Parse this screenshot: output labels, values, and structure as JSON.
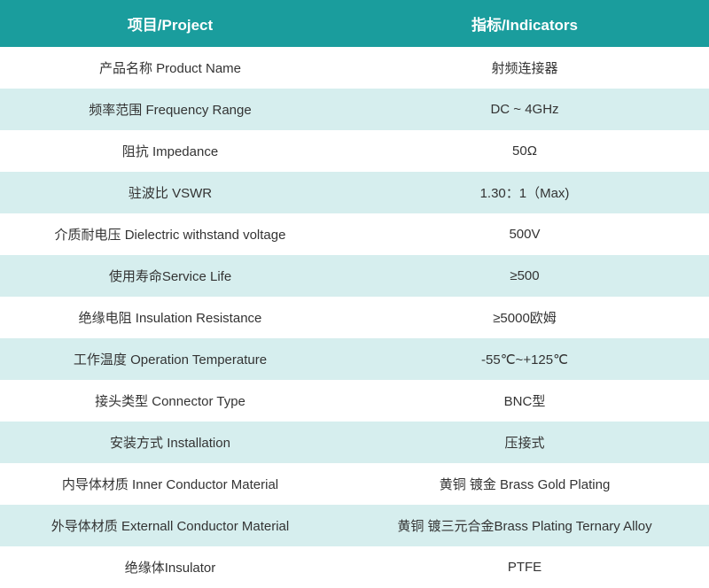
{
  "table": {
    "header_bg": "#1a9d9d",
    "header_text_color": "#ffffff",
    "row_even_bg": "#ffffff",
    "row_odd_bg": "#d6eeee",
    "cell_text_color": "#333333",
    "header_fontsize": 17,
    "cell_fontsize": 15,
    "columns": [
      "项目/Project",
      "指标/Indicators"
    ],
    "rows": [
      [
        "产品名称 Product Name",
        "射频连接器"
      ],
      [
        "频率范围 Frequency Range",
        "DC ~ 4GHz"
      ],
      [
        "阻抗 Impedance",
        "50Ω"
      ],
      [
        "驻波比 VSWR",
        "1.30：1（Max)"
      ],
      [
        "介质耐电压 Dielectric withstand voltage",
        "500V"
      ],
      [
        "使用寿命Service Life",
        "≥500"
      ],
      [
        "绝缘电阻 Insulation Resistance",
        "≥5000欧姆"
      ],
      [
        "工作温度 Operation Temperature",
        "-55℃~+125℃"
      ],
      [
        "接头类型  Connector Type",
        "BNC型"
      ],
      [
        "安装方式 Installation",
        "压接式"
      ],
      [
        "内导体材质 Inner Conductor Material",
        "黄铜 镀金  Brass Gold Plating"
      ],
      [
        "外导体材质 Externall Conductor Material",
        "黄铜 镀三元合金Brass Plating Ternary Alloy"
      ],
      [
        "绝缘体Insulator",
        "PTFE"
      ]
    ]
  }
}
